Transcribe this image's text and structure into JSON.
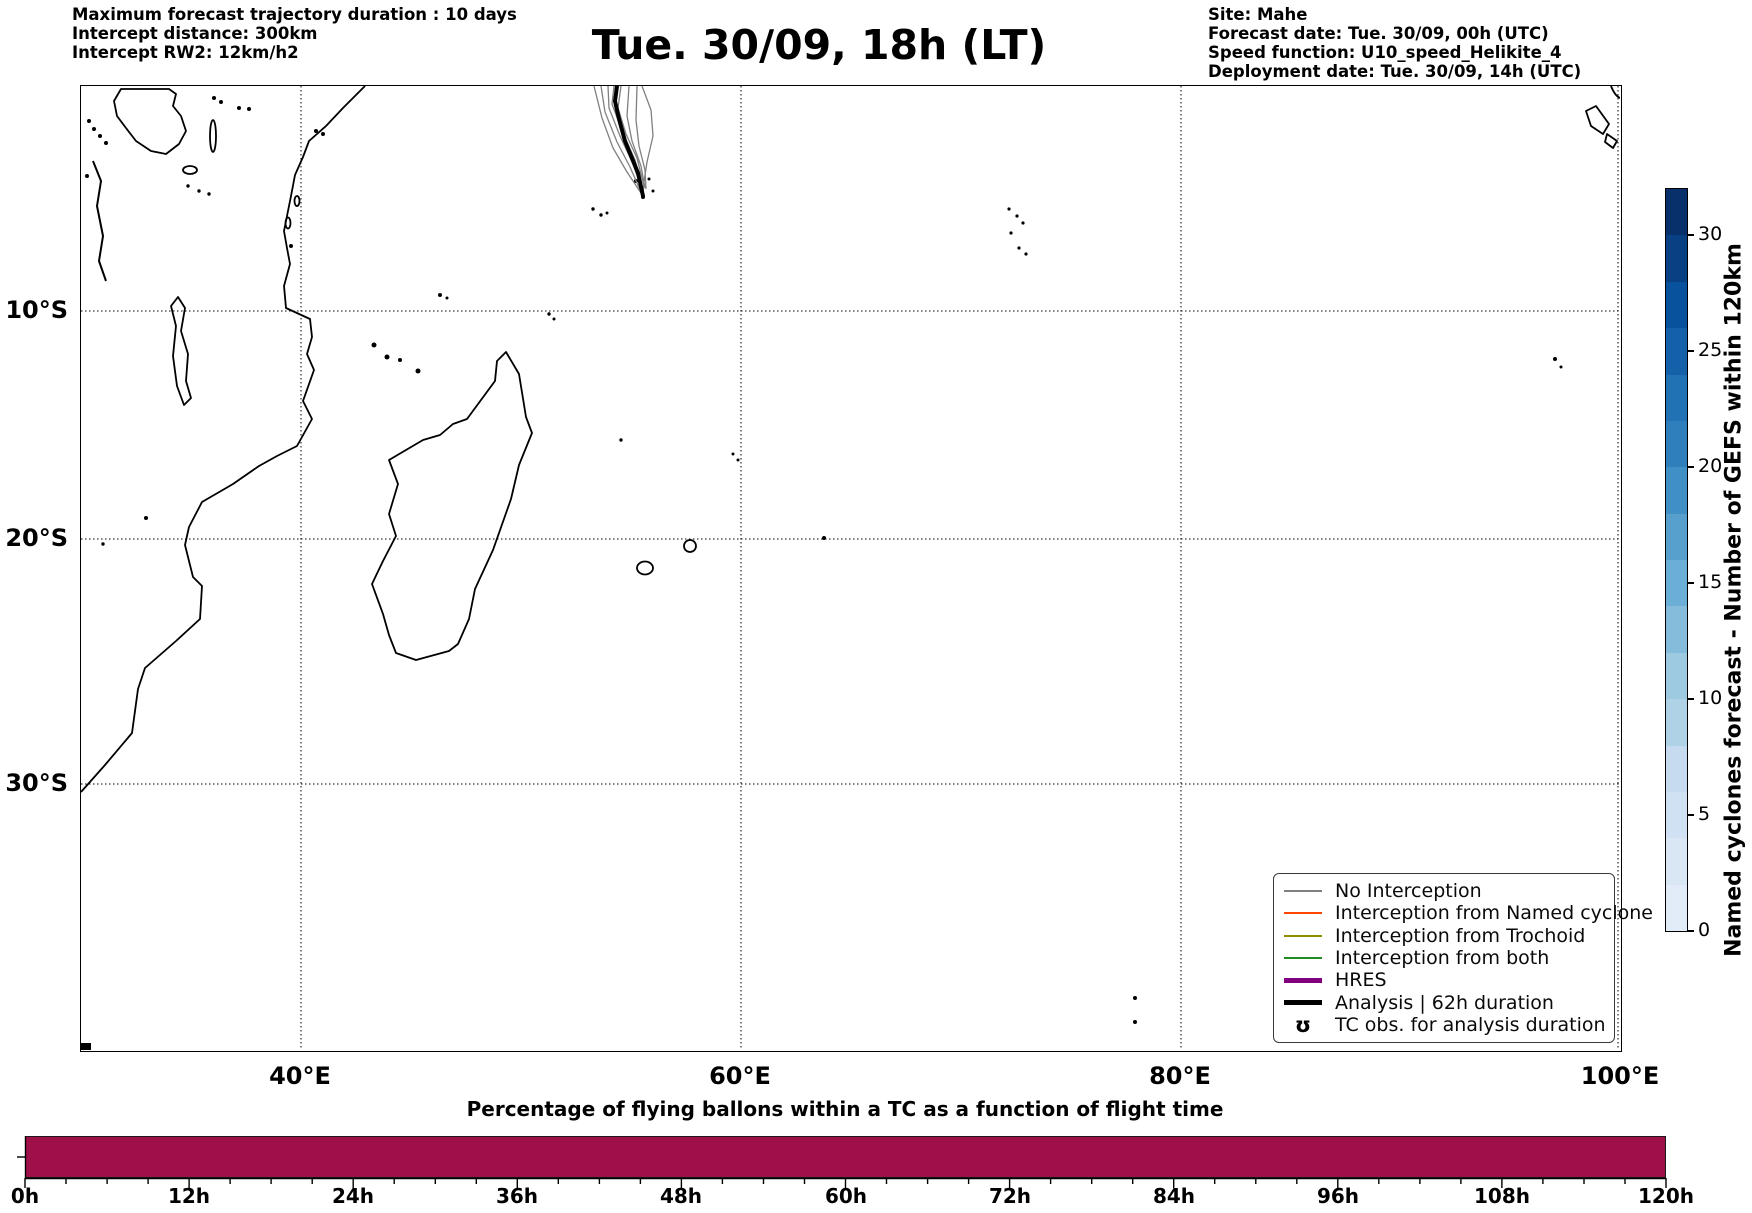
{
  "header": {
    "left_lines": [
      "Maximum forecast trajectory duration : 10 days",
      "Intercept distance: 300km",
      "Intercept RW2: 12km/h2"
    ],
    "title": "Tue. 30/09, 18h (LT)",
    "right_lines": [
      "Site: Mahe",
      "Forecast date: Tue. 30/09, 00h (UTC)",
      "Speed function: U10_speed_Helikite_4",
      "Deployment date: Tue. 30/09, 14h (UTC)"
    ]
  },
  "map": {
    "lat_tick_labels": [
      "10°S",
      "20°S",
      "30°S"
    ],
    "lon_tick_labels": [
      "40°E",
      "60°E",
      "80°E",
      "100°E"
    ],
    "trajectory_origin": "Mahe, Seychelles",
    "coastline_color": "#000000",
    "ensemble_color": "#808080",
    "analysis_color": "#000000"
  },
  "legend": {
    "items": [
      {
        "label": "No Interception",
        "color": "#808080",
        "style": "thin"
      },
      {
        "label": "Interception from Named cyclone",
        "color": "#ff4500",
        "style": "thin"
      },
      {
        "label": "Interception from Trochoid",
        "color": "#8f8f00",
        "style": "thin"
      },
      {
        "label": "Interception from both",
        "color": "#228b22",
        "style": "thin"
      },
      {
        "label": "HRES",
        "color": "#800080",
        "style": "thick"
      },
      {
        "label": "Analysis | 62h duration",
        "color": "#000000",
        "style": "thick"
      },
      {
        "label": "TC obs. for analysis duration",
        "marker": "ʊ",
        "color": "#000000",
        "style": "marker"
      }
    ]
  },
  "colorbar": {
    "label": "Named cyclones forecast - Number of GEFS within 120km",
    "tick_labels": [
      "30",
      "25",
      "20",
      "15",
      "10",
      "5",
      "0"
    ],
    "segment_colors_top_to_bottom": [
      "#08306b",
      "#084083",
      "#08519c",
      "#1561a9",
      "#2171b5",
      "#2f7fbc",
      "#4090c5",
      "#57a0ce",
      "#6baed6",
      "#85bcdb",
      "#9ecae1",
      "#b0d2e7",
      "#c6dbef",
      "#cfe1f3",
      "#d9e7f5",
      "#e1ecf8"
    ]
  },
  "chart_data": {
    "type": "bar",
    "title": "Percentage of flying ballons within a TC as a function of flight time",
    "xlabel": "",
    "ylabel": "",
    "x_tick_labels": [
      "0h",
      "12h",
      "24h",
      "36h",
      "48h",
      "60h",
      "72h",
      "84h",
      "96h",
      "108h",
      "120h"
    ],
    "x_range_hours": [
      0,
      120
    ],
    "minor_tick_interval_hours": 3,
    "series": [
      {
        "name": "percent of flying balloons within a TC",
        "constant_value_percent": 100,
        "x_start_h": 0,
        "x_end_h": 120
      }
    ],
    "bar_color": "#9f1048"
  }
}
